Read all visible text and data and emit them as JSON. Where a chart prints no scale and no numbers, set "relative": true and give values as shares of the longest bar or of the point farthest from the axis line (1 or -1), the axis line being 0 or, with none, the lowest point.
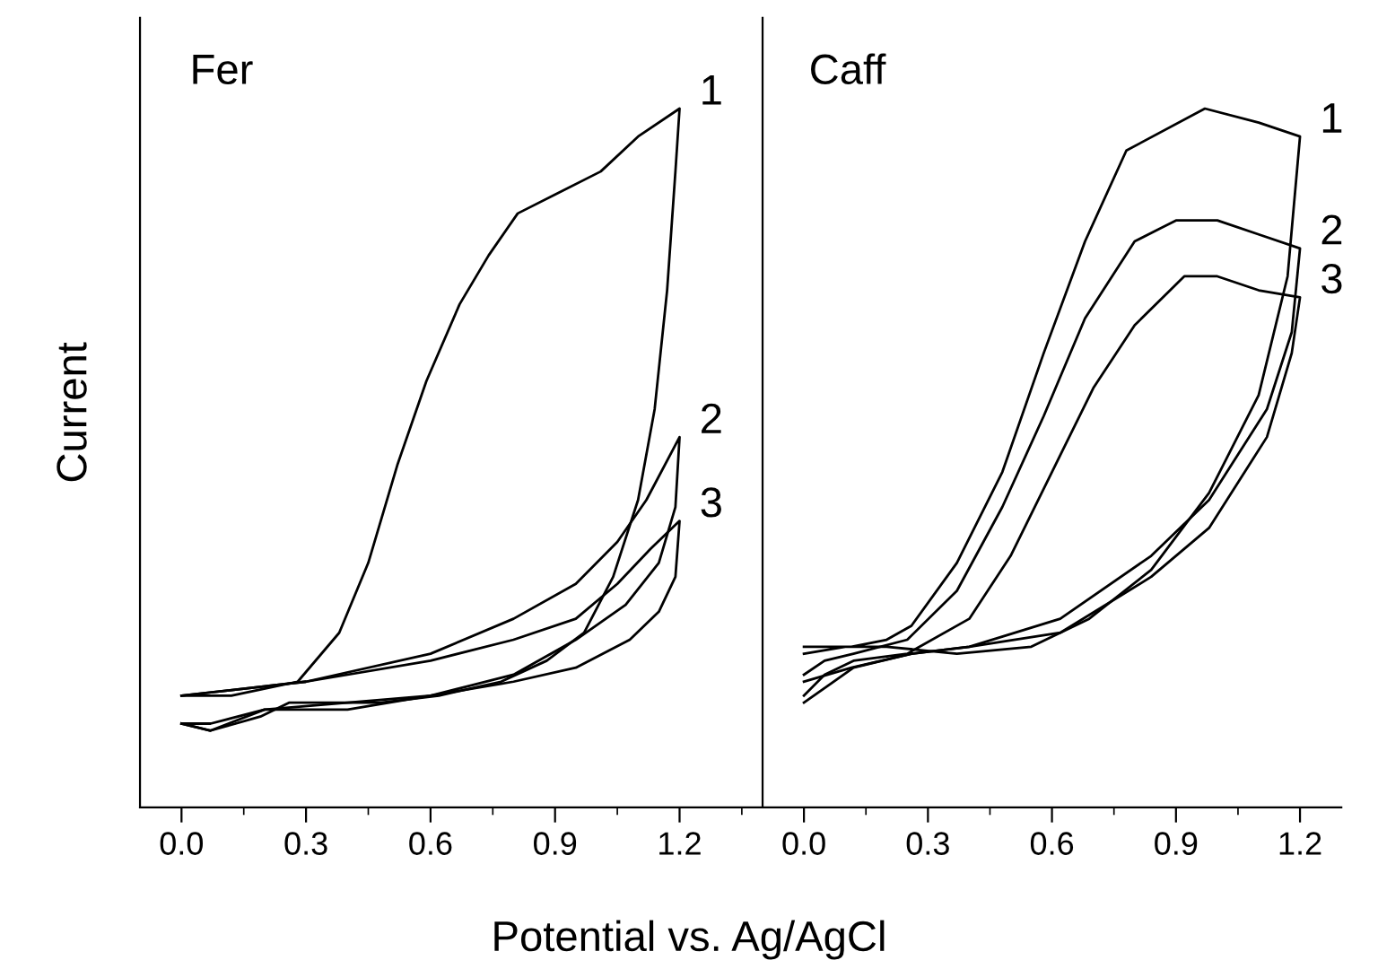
{
  "chart_data": [
    {
      "type": "line",
      "title": "Fer",
      "ylabel": "Current",
      "xlabel": "Potential vs. Ag/AgCl",
      "relative": true,
      "xlim": [
        -0.1,
        1.4
      ],
      "xticks": [
        {
          "value": 0,
          "label": "0.0"
        },
        0.3,
        0.6,
        0.9,
        1.2
      ],
      "grid": false,
      "legend": false,
      "marker": "none",
      "line_style": "solid",
      "series": [
        {
          "name": "1",
          "color": "#000000",
          "x": [
            0,
            0.12,
            0.28,
            0.38,
            0.45,
            0.52,
            0.59,
            0.67,
            0.74,
            0.81,
            0.91,
            1.01,
            1.1,
            1.2,
            1.19,
            1.17,
            1.14,
            1.1,
            1.04,
            0.97,
            0.88,
            0.77,
            0.62,
            0.48,
            0.26,
            0.19,
            0.07,
            0
          ],
          "values": [
            0.16,
            0.16,
            0.18,
            0.25,
            0.35,
            0.49,
            0.61,
            0.72,
            0.79,
            0.85,
            0.88,
            0.91,
            0.96,
            1.0,
            0.91,
            0.74,
            0.57,
            0.44,
            0.33,
            0.25,
            0.21,
            0.18,
            0.16,
            0.15,
            0.15,
            0.13,
            0.11,
            0.12
          ]
        },
        {
          "name": "2",
          "color": "#000000",
          "x": [
            0,
            0.3,
            0.6,
            0.8,
            0.95,
            1.05,
            1.12,
            1.2,
            1.19,
            1.15,
            1.07,
            0.95,
            0.8,
            0.6,
            0.4,
            0.2,
            0.07,
            0
          ],
          "values": [
            0.16,
            0.18,
            0.22,
            0.27,
            0.32,
            0.38,
            0.44,
            0.53,
            0.43,
            0.35,
            0.29,
            0.24,
            0.19,
            0.16,
            0.15,
            0.14,
            0.12,
            0.12
          ]
        },
        {
          "name": "3",
          "color": "#000000",
          "x": [
            0,
            0.3,
            0.6,
            0.8,
            0.95,
            1.05,
            1.13,
            1.2,
            1.19,
            1.15,
            1.08,
            0.95,
            0.8,
            0.6,
            0.4,
            0.2,
            0.07,
            0
          ],
          "values": [
            0.16,
            0.18,
            0.21,
            0.24,
            0.27,
            0.32,
            0.37,
            0.41,
            0.33,
            0.28,
            0.24,
            0.2,
            0.18,
            0.16,
            0.14,
            0.14,
            0.11,
            0.12
          ]
        }
      ]
    },
    {
      "type": "line",
      "title": "Caff",
      "relative": true,
      "xlim": [
        -0.1,
        1.3
      ],
      "xticks": [
        {
          "value": 0,
          "label": "0.0"
        },
        0.3,
        0.6,
        0.9,
        1.2
      ],
      "grid": false,
      "legend": false,
      "marker": "none",
      "line_style": "solid",
      "series": [
        {
          "name": "1",
          "color": "#000000",
          "x": [
            0,
            0.115,
            0.2,
            0.26,
            0.37,
            0.48,
            0.58,
            0.68,
            0.78,
            0.97,
            1.1,
            1.2,
            1.17,
            1.1,
            0.98,
            0.84,
            0.69,
            0.55,
            0.37,
            0.2,
            0.1,
            0
          ],
          "values": [
            0.23,
            0.23,
            0.24,
            0.26,
            0.35,
            0.48,
            0.65,
            0.81,
            0.94,
            1.0,
            0.98,
            0.96,
            0.76,
            0.59,
            0.45,
            0.34,
            0.27,
            0.23,
            0.22,
            0.23,
            0.23,
            0.22
          ]
        },
        {
          "name": "2",
          "color": "#000000",
          "x": [
            0,
            0.05,
            0.12,
            0.25,
            0.37,
            0.48,
            0.58,
            0.68,
            0.8,
            0.9,
            1.0,
            1.1,
            1.2,
            1.18,
            1.12,
            0.98,
            0.84,
            0.62,
            0.4,
            0.26,
            0.115,
            0
          ],
          "values": [
            0.19,
            0.21,
            0.22,
            0.24,
            0.31,
            0.43,
            0.56,
            0.7,
            0.81,
            0.84,
            0.84,
            0.82,
            0.8,
            0.68,
            0.57,
            0.44,
            0.36,
            0.27,
            0.23,
            0.22,
            0.2,
            0.18
          ]
        },
        {
          "name": "3",
          "color": "#000000",
          "x": [
            0,
            0.05,
            0.12,
            0.25,
            0.4,
            0.5,
            0.6,
            0.7,
            0.8,
            0.92,
            1.0,
            1.1,
            1.2,
            1.18,
            1.12,
            0.98,
            0.84,
            0.62,
            0.4,
            0.26,
            0.12,
            0
          ],
          "values": [
            0.16,
            0.19,
            0.21,
            0.22,
            0.27,
            0.36,
            0.48,
            0.6,
            0.69,
            0.76,
            0.76,
            0.74,
            0.73,
            0.65,
            0.53,
            0.4,
            0.33,
            0.25,
            0.23,
            0.22,
            0.2,
            0.15
          ]
        }
      ]
    }
  ]
}
